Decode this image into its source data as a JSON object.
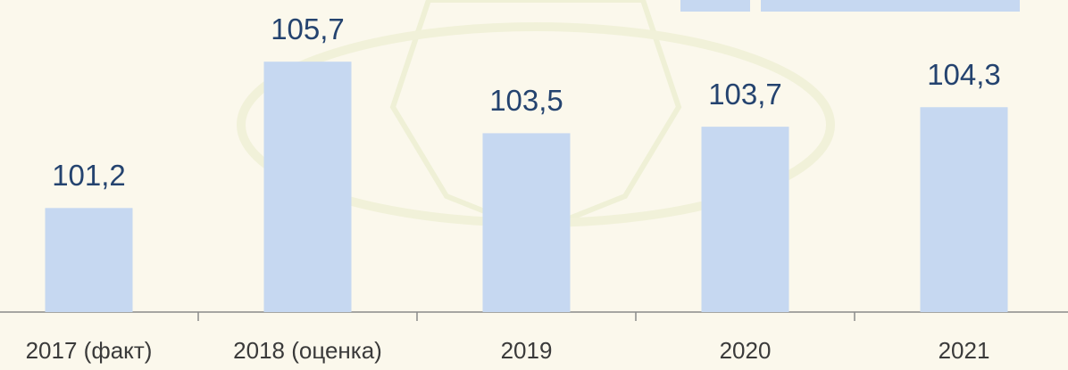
{
  "chart_data": {
    "type": "bar",
    "categories": [
      "2017 (факт)",
      "2018 (оценка)",
      "2019",
      "2020",
      "2021"
    ],
    "values": [
      101.2,
      105.7,
      103.5,
      103.7,
      104.3
    ],
    "value_labels": [
      "101,2",
      "105,7",
      "103,5",
      "103,7",
      "104,3"
    ],
    "color": "#c6d8f1",
    "ylim": [
      98,
      106.5
    ]
  }
}
